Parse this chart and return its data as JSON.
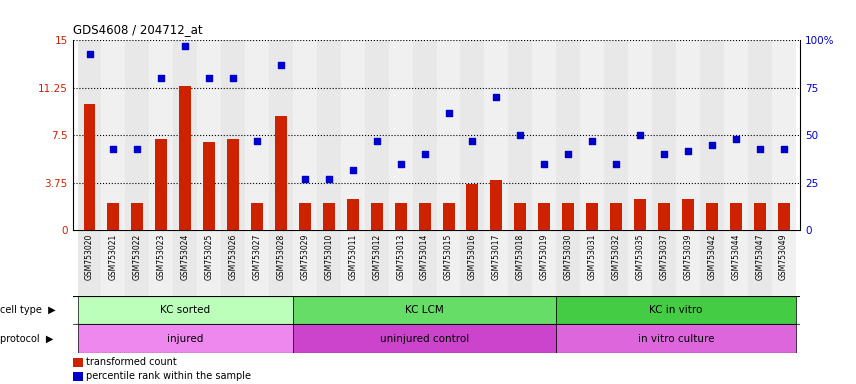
{
  "title": "GDS4608 / 204712_at",
  "samples": [
    "GSM753020",
    "GSM753021",
    "GSM753022",
    "GSM753023",
    "GSM753024",
    "GSM753025",
    "GSM753026",
    "GSM753027",
    "GSM753028",
    "GSM753029",
    "GSM753010",
    "GSM753011",
    "GSM753012",
    "GSM753013",
    "GSM753014",
    "GSM753015",
    "GSM753016",
    "GSM753017",
    "GSM753018",
    "GSM753019",
    "GSM753030",
    "GSM753031",
    "GSM753032",
    "GSM753035",
    "GSM753037",
    "GSM753039",
    "GSM753042",
    "GSM753044",
    "GSM753047",
    "GSM753049"
  ],
  "transformed_count": [
    10.0,
    2.2,
    2.2,
    7.2,
    11.4,
    7.0,
    7.2,
    2.2,
    9.0,
    2.2,
    2.2,
    2.5,
    2.2,
    2.2,
    2.2,
    2.2,
    3.7,
    4.0,
    2.2,
    2.2,
    2.2,
    2.2,
    2.2,
    2.5,
    2.2,
    2.5,
    2.2,
    2.2,
    2.2,
    2.2
  ],
  "percentile_rank": [
    93,
    43,
    43,
    80,
    97,
    80,
    80,
    47,
    87,
    27,
    27,
    32,
    47,
    35,
    40,
    62,
    47,
    70,
    50,
    35,
    40,
    47,
    35,
    50,
    40,
    42,
    45,
    48,
    43,
    43
  ],
  "bar_color": "#cc2200",
  "dot_color": "#0000cc",
  "ylim_left": [
    0,
    15
  ],
  "ylim_right": [
    0,
    100
  ],
  "yticks_left": [
    0,
    3.75,
    7.5,
    11.25,
    15
  ],
  "yticks_right": [
    0,
    25,
    50,
    75,
    100
  ],
  "ytick_labels_left": [
    "0",
    "3.75",
    "7.5",
    "11.25",
    "15"
  ],
  "ytick_labels_right": [
    "0",
    "25",
    "50",
    "75",
    "100%"
  ],
  "cell_type_groups": [
    {
      "label": "KC sorted",
      "start": 0,
      "end": 9,
      "color": "#bbffbb"
    },
    {
      "label": "KC LCM",
      "start": 9,
      "end": 20,
      "color": "#66dd66"
    },
    {
      "label": "KC in vitro",
      "start": 20,
      "end": 30,
      "color": "#44cc44"
    }
  ],
  "protocol_groups": [
    {
      "label": "injured",
      "start": 0,
      "end": 9,
      "color": "#ee88ee"
    },
    {
      "label": "uninjured control",
      "start": 9,
      "end": 20,
      "color": "#cc44cc"
    },
    {
      "label": "in vitro culture",
      "start": 20,
      "end": 30,
      "color": "#dd66dd"
    }
  ],
  "legend_red_label": "transformed count",
  "legend_blue_label": "percentile rank within the sample",
  "bg_color": "#ffffff",
  "bar_width": 0.5,
  "col_bg_even": "#e8e8e8",
  "col_bg_odd": "#f0f0f0"
}
